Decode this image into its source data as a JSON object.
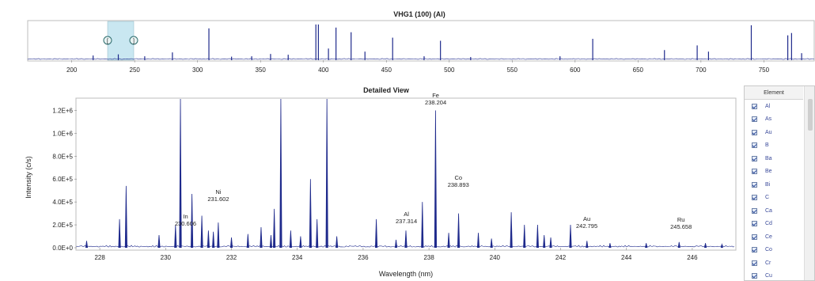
{
  "overview": {
    "title": "VHG1 (100) (Al)",
    "x_ticks": [
      "200",
      "250",
      "300",
      "350",
      "400",
      "450",
      "500",
      "550",
      "600",
      "650",
      "700",
      "750"
    ],
    "selection_handles": [
      "[",
      "]"
    ]
  },
  "detail": {
    "title": "Detailed View",
    "xlabel": "Wavelength (nm)",
    "ylabel": "Intensity (c/s)",
    "x_ticks": [
      "228",
      "230",
      "232",
      "234",
      "236",
      "238",
      "240",
      "242",
      "244",
      "246"
    ],
    "y_ticks": [
      "0.0E+0",
      "2.0E+5",
      "4.0E+5",
      "6.0E+5",
      "8.0E+5",
      "1.0E+6",
      "1.2E+6"
    ],
    "annotations": [
      {
        "element": "Fe",
        "wavelength": "238.204"
      },
      {
        "element": "Ni",
        "wavelength": "231.602"
      },
      {
        "element": "In",
        "wavelength": "230.606"
      },
      {
        "element": "Co",
        "wavelength": "238.893"
      },
      {
        "element": "Al",
        "wavelength": "237.314"
      },
      {
        "element": "Au",
        "wavelength": "242.795"
      },
      {
        "element": "Ru",
        "wavelength": "245.658"
      }
    ]
  },
  "chart_data": [
    {
      "type": "line",
      "title": "VHG1 (100) (Al)",
      "xlim": [
        165,
        790
      ],
      "ylim": [
        0,
        1
      ],
      "peaks": [
        {
          "x": 217,
          "y": 0.12
        },
        {
          "x": 237,
          "y": 0.15
        },
        {
          "x": 258,
          "y": 0.1
        },
        {
          "x": 280,
          "y": 0.2
        },
        {
          "x": 309,
          "y": 0.82
        },
        {
          "x": 327,
          "y": 0.09
        },
        {
          "x": 343,
          "y": 0.1
        },
        {
          "x": 358,
          "y": 0.16
        },
        {
          "x": 372,
          "y": 0.14
        },
        {
          "x": 394,
          "y": 0.92
        },
        {
          "x": 396,
          "y": 0.92
        },
        {
          "x": 404,
          "y": 0.3
        },
        {
          "x": 410,
          "y": 0.84
        },
        {
          "x": 422,
          "y": 0.72
        },
        {
          "x": 433,
          "y": 0.22
        },
        {
          "x": 455,
          "y": 0.58
        },
        {
          "x": 480,
          "y": 0.1
        },
        {
          "x": 493,
          "y": 0.5
        },
        {
          "x": 517,
          "y": 0.08
        },
        {
          "x": 588,
          "y": 0.1
        },
        {
          "x": 614,
          "y": 0.55
        },
        {
          "x": 671,
          "y": 0.26
        },
        {
          "x": 697,
          "y": 0.38
        },
        {
          "x": 706,
          "y": 0.22
        },
        {
          "x": 740,
          "y": 0.9
        },
        {
          "x": 769,
          "y": 0.64
        },
        {
          "x": 772,
          "y": 0.7
        },
        {
          "x": 780,
          "y": 0.18
        }
      ]
    },
    {
      "type": "line",
      "title": "Detailed View",
      "xlabel": "Wavelength (nm)",
      "ylabel": "Intensity (c/s)",
      "xlim": [
        227.3,
        247.3
      ],
      "ylim": [
        0,
        1300000
      ],
      "peaks": [
        {
          "x": 227.6,
          "y": 60000
        },
        {
          "x": 228.6,
          "y": 250000
        },
        {
          "x": 228.8,
          "y": 540000
        },
        {
          "x": 229.8,
          "y": 110000
        },
        {
          "x": 230.3,
          "y": 200000
        },
        {
          "x": 230.45,
          "y": 1310000
        },
        {
          "x": 230.8,
          "y": 470000
        },
        {
          "x": 231.1,
          "y": 280000
        },
        {
          "x": 231.3,
          "y": 150000
        },
        {
          "x": 231.45,
          "y": 140000
        },
        {
          "x": 231.6,
          "y": 220000
        },
        {
          "x": 232.0,
          "y": 90000
        },
        {
          "x": 232.5,
          "y": 120000
        },
        {
          "x": 232.9,
          "y": 180000
        },
        {
          "x": 233.2,
          "y": 110000
        },
        {
          "x": 233.3,
          "y": 340000
        },
        {
          "x": 233.5,
          "y": 1500000
        },
        {
          "x": 233.8,
          "y": 150000
        },
        {
          "x": 234.1,
          "y": 100000
        },
        {
          "x": 234.4,
          "y": 600000
        },
        {
          "x": 234.6,
          "y": 250000
        },
        {
          "x": 234.9,
          "y": 1500000
        },
        {
          "x": 235.2,
          "y": 100000
        },
        {
          "x": 236.4,
          "y": 250000
        },
        {
          "x": 237.0,
          "y": 70000
        },
        {
          "x": 237.3,
          "y": 150000
        },
        {
          "x": 237.8,
          "y": 400000
        },
        {
          "x": 238.2,
          "y": 1200000
        },
        {
          "x": 238.6,
          "y": 130000
        },
        {
          "x": 238.9,
          "y": 300000
        },
        {
          "x": 239.5,
          "y": 130000
        },
        {
          "x": 239.9,
          "y": 80000
        },
        {
          "x": 240.5,
          "y": 310000
        },
        {
          "x": 240.9,
          "y": 200000
        },
        {
          "x": 241.3,
          "y": 200000
        },
        {
          "x": 241.5,
          "y": 110000
        },
        {
          "x": 241.7,
          "y": 90000
        },
        {
          "x": 242.3,
          "y": 200000
        },
        {
          "x": 242.8,
          "y": 60000
        },
        {
          "x": 243.5,
          "y": 40000
        },
        {
          "x": 244.6,
          "y": 40000
        },
        {
          "x": 245.6,
          "y": 50000
        },
        {
          "x": 246.4,
          "y": 40000
        },
        {
          "x": 246.9,
          "y": 30000
        }
      ]
    }
  ],
  "element_panel": {
    "header": "Element",
    "items": [
      "Al",
      "As",
      "Au",
      "B",
      "Ba",
      "Be",
      "Bi",
      "C",
      "Ca",
      "Cd",
      "Ce",
      "Co",
      "Cr",
      "Cu"
    ]
  },
  "colors": {
    "spectrum": "#1f2a8c",
    "selection": "#bfe3ee",
    "handle": "#2e6d6d"
  }
}
